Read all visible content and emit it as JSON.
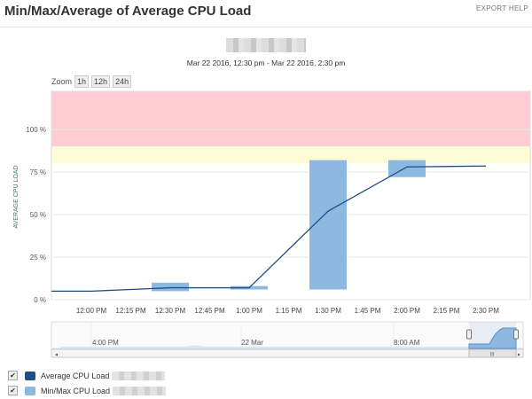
{
  "header": {
    "title": "Min/Max/Average of Average CPU Load",
    "export_label": "EXPORT",
    "help_label": "HELP"
  },
  "chart_subtitle": "Mar 22 2016, 12:30 pm - Mar 22 2016, 2:30 pm",
  "zoom": {
    "label": "Zoom",
    "buttons": [
      "1h",
      "12h",
      "24h"
    ]
  },
  "colors": {
    "average": "#1f4e89",
    "minmax": "#8db8e0",
    "critical_zone": "#fecdd3",
    "warning_zone": "#fefcd4"
  },
  "chart_data": {
    "type": "line",
    "ylabel": "AVERAGE CPU LOAD",
    "ylim": [
      0,
      122
    ],
    "yticks": [
      "0 %",
      "25 %",
      "50 %",
      "75 %",
      "100 %"
    ],
    "xticks": [
      "12:00 PM",
      "12:15 PM",
      "12:30 PM",
      "12:45 PM",
      "1:00 PM",
      "1:15 PM",
      "1:30 PM",
      "1:45 PM",
      "2:00 PM",
      "2:15 PM",
      "2:30 PM"
    ],
    "thresholds": {
      "warning": [
        80,
        90
      ],
      "critical": [
        90,
        122
      ]
    },
    "series": [
      {
        "name": "Average CPU Load",
        "type": "line",
        "x": [
          "11:45",
          "12:00",
          "12:30",
          "1:00",
          "1:30",
          "2:00",
          "2:30"
        ],
        "values": [
          5,
          5,
          7,
          7,
          52,
          78,
          78.5
        ]
      },
      {
        "name": "Min/Max CPU Load",
        "type": "range-bar",
        "x": [
          "12:30",
          "1:00",
          "1:30",
          "2:00"
        ],
        "min": [
          5,
          6,
          6,
          72
        ],
        "max": [
          10,
          8,
          82,
          82
        ]
      }
    ]
  },
  "navigator": {
    "labels": [
      "4:00 PM",
      "22 Mar",
      "8:00 AM"
    ]
  },
  "legend": [
    {
      "label": "Average CPU Load",
      "checked": true
    },
    {
      "label": "Min/Max CPU Load",
      "checked": true
    }
  ]
}
